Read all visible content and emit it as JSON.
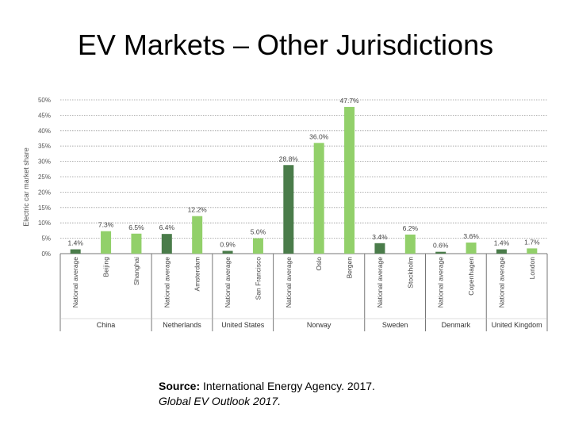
{
  "title": "EV Markets – Other Jurisdictions",
  "source": {
    "label": "Source:",
    "text": "International Energy Agency. 2017.",
    "publication": "Global EV Outlook 2017."
  },
  "chart_data": {
    "type": "bar",
    "ylabel": "Electric car market share",
    "ylim": [
      0,
      50
    ],
    "yticks": [
      "0%",
      "5%",
      "10%",
      "15%",
      "20%",
      "25%",
      "30%",
      "35%",
      "40%",
      "45%",
      "50%"
    ],
    "grid": true,
    "colors": {
      "national": "#4a7c4a",
      "city": "#92d06a"
    },
    "categories": [
      "National average",
      "Beijing",
      "Shanghai",
      "National average",
      "Amsterdam",
      "National average",
      "San Francisco",
      "National average",
      "Oslo",
      "Bergen",
      "National average",
      "Stockholm",
      "National average",
      "Copenhagen",
      "National average",
      "London"
    ],
    "values": [
      1.4,
      7.3,
      6.5,
      6.4,
      12.2,
      0.9,
      5.0,
      28.8,
      36.0,
      47.7,
      3.4,
      6.2,
      0.6,
      3.6,
      1.4,
      1.7
    ],
    "value_labels": [
      "1.4%",
      "7.3%",
      "6.5%",
      "6.4%",
      "12.2%",
      "0.9%",
      "5.0%",
      "28.8%",
      "36.0%",
      "47.7%",
      "3.4%",
      "6.2%",
      "0.6%",
      "3.6%",
      "1.4%",
      "1.7%"
    ],
    "kinds": [
      "national",
      "city",
      "city",
      "national",
      "city",
      "national",
      "city",
      "national",
      "city",
      "city",
      "national",
      "city",
      "national",
      "city",
      "national",
      "city"
    ],
    "groups": [
      {
        "name": "China",
        "size": 3
      },
      {
        "name": "Netherlands",
        "size": 2
      },
      {
        "name": "United States",
        "size": 2
      },
      {
        "name": "Norway",
        "size": 3
      },
      {
        "name": "Sweden",
        "size": 2
      },
      {
        "name": "Denmark",
        "size": 2
      },
      {
        "name": "United Kingdom",
        "size": 2
      }
    ]
  }
}
